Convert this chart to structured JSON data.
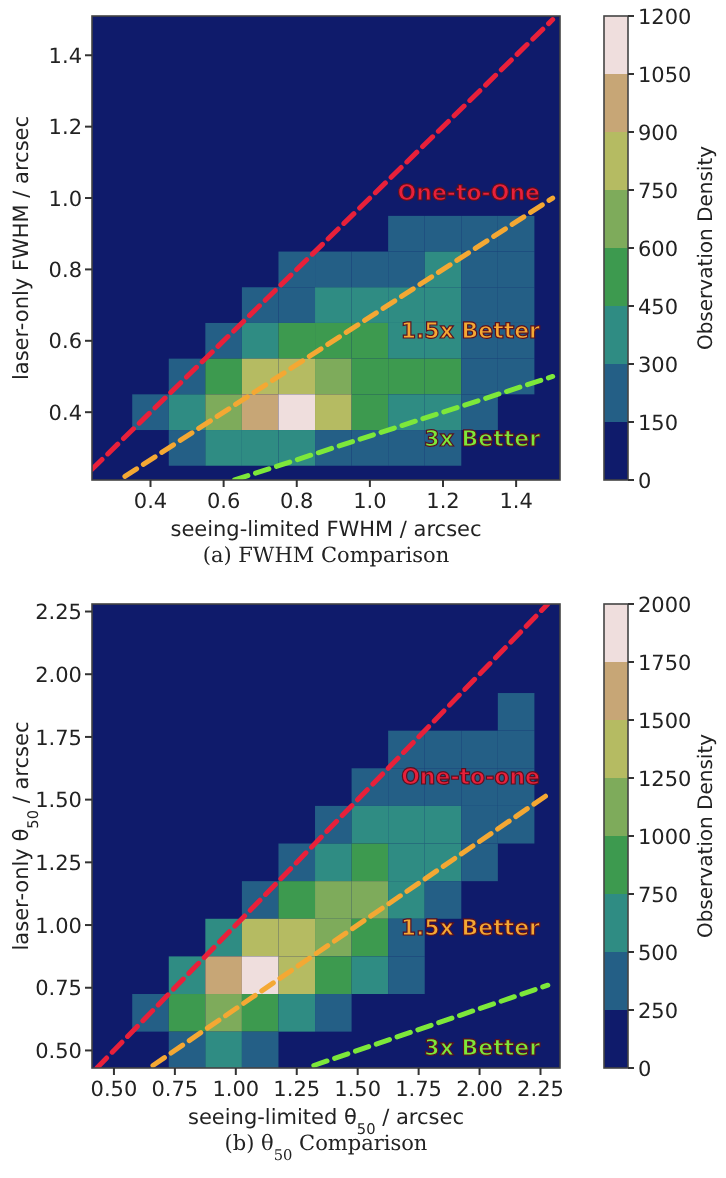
{
  "chart_data": [
    {
      "type": "scatter",
      "title": "(a) FWHM Comparison",
      "xlabel": "seeing-limited FWHM / arcsec",
      "ylabel": "laser-only FWHM / arcsec",
      "clabel": "Observation Density",
      "clim": [
        0,
        1200
      ],
      "cticks": [
        0,
        150,
        300,
        450,
        600,
        750,
        900,
        1050,
        1200
      ],
      "xlim": [
        0.24,
        1.52
      ],
      "ylim": [
        0.21,
        1.51
      ],
      "xticks": [
        {
          "value": 0.4,
          "label": "0.4"
        },
        {
          "value": 0.6,
          "label": "0.6"
        },
        {
          "value": 0.8,
          "label": "0.8"
        },
        {
          "value": 1.0,
          "label": "1.0"
        },
        {
          "value": 1.2,
          "label": "1.2"
        },
        {
          "value": 1.4,
          "label": "1.4"
        }
      ],
      "yticks": [
        {
          "value": 0.4,
          "label": "0.4"
        },
        {
          "value": 0.6,
          "label": "0.6"
        },
        {
          "value": 0.8,
          "label": "0.8"
        },
        {
          "value": 1.0,
          "label": "1.0"
        },
        {
          "value": 1.2,
          "label": "1.2"
        },
        {
          "value": 1.4,
          "label": "1.4"
        }
      ],
      "series": [
        {
          "type": "scatter",
          "marker": "square",
          "x": [
            1.1,
            1.2,
            1.3,
            1.4,
            0.8,
            0.9,
            1.0,
            1.1,
            1.2,
            1.3,
            1.4,
            0.7,
            0.8,
            0.9,
            1.0,
            1.1,
            1.2,
            1.3,
            1.4,
            0.6,
            0.7,
            0.8,
            0.9,
            1.0,
            1.1,
            1.2,
            1.3,
            1.4,
            0.5,
            0.6,
            0.7,
            0.8,
            0.9,
            1.0,
            1.1,
            1.2,
            1.3,
            1.4,
            0.4,
            0.5,
            0.6,
            0.7,
            0.8,
            0.9,
            1.0,
            1.1,
            1.2,
            1.3,
            0.5,
            0.6,
            0.7,
            0.8,
            0.9,
            1.0,
            1.1,
            1.2
          ],
          "values": [
            0.9,
            0.9,
            0.9,
            0.9,
            0.8,
            0.8,
            0.8,
            0.8,
            0.8,
            0.8,
            0.8,
            0.7,
            0.7,
            0.7,
            0.7,
            0.7,
            0.7,
            0.7,
            0.7,
            0.6,
            0.6,
            0.6,
            0.6,
            0.6,
            0.6,
            0.6,
            0.6,
            0.6,
            0.5,
            0.5,
            0.5,
            0.5,
            0.5,
            0.5,
            0.5,
            0.5,
            0.5,
            0.5,
            0.4,
            0.4,
            0.4,
            0.4,
            0.4,
            0.4,
            0.4,
            0.4,
            0.4,
            0.4,
            0.3,
            0.3,
            0.3,
            0.3,
            0.3,
            0.3,
            0.3,
            0.3
          ],
          "colors": [
            "#245f86",
            "#245f86",
            "#245f86",
            "#245f86",
            "#245f86",
            "#245f86",
            "#245f86",
            "#245f86",
            "#2f8c83",
            "#245f86",
            "#245f86",
            "#245f86",
            "#245f86",
            "#2f8c83",
            "#2f8c83",
            "#2f8c83",
            "#2f8c83",
            "#245f86",
            "#245f86",
            "#245f86",
            "#2f8c83",
            "#3d9a4f",
            "#3d9a4f",
            "#3d9a4f",
            "#2f8c83",
            "#2f8c83",
            "#245f86",
            "#245f86",
            "#245f86",
            "#3d9a4f",
            "#b5bb62",
            "#b5bb62",
            "#7eab5b",
            "#3d9a4f",
            "#3d9a4f",
            "#3d9a4f",
            "#245f86",
            "#245f86",
            "#245f86",
            "#2f8c83",
            "#7eab5b",
            "#c7a676",
            "#efdedd",
            "#b5bb62",
            "#3d9a4f",
            "#2f8c83",
            "#2f8c83",
            "#245f86",
            "#245f86",
            "#2f8c83",
            "#2f8c83",
            "#2f8c83",
            "#245f86",
            "#245f86",
            "#245f86",
            "#245f86"
          ]
        },
        {
          "type": "line",
          "name": "One-to-One",
          "color": "#e8203a",
          "line_style": "dashed",
          "x": [
            0.24,
            1.5
          ],
          "values": [
            0.24,
            1.5
          ]
        },
        {
          "type": "line",
          "name": "1.5x Better",
          "color": "#f4a833",
          "line_style": "dashed",
          "x": [
            0.33,
            1.5
          ],
          "values": [
            0.22,
            1.0
          ]
        },
        {
          "type": "line",
          "name": "3x Better",
          "color": "#7de83a",
          "line_style": "dashed",
          "x": [
            0.63,
            1.5
          ],
          "values": [
            0.21,
            0.5
          ]
        }
      ]
    },
    {
      "type": "scatter",
      "title": "(b) θ$_{50}$ Comparison",
      "xlabel": "seeing-limited θ$_{50}$ / arcsec",
      "ylabel": "laser-only θ$_{50}$ / arcsec",
      "clabel": "Observation Density",
      "clim": [
        0,
        2000
      ],
      "cticks": [
        0,
        250,
        500,
        750,
        1000,
        1250,
        1500,
        1750,
        2000
      ],
      "xlim": [
        0.41,
        2.33
      ],
      "ylim": [
        0.43,
        2.28
      ],
      "xticks": [
        {
          "value": 0.5,
          "label": "0.50"
        },
        {
          "value": 0.75,
          "label": "0.75"
        },
        {
          "value": 1.0,
          "label": "1.00"
        },
        {
          "value": 1.25,
          "label": "1.25"
        },
        {
          "value": 1.5,
          "label": "1.50"
        },
        {
          "value": 1.75,
          "label": "1.75"
        },
        {
          "value": 2.0,
          "label": "2.00"
        },
        {
          "value": 2.25,
          "label": "2.25"
        }
      ],
      "yticks": [
        {
          "value": 0.5,
          "label": "0.50"
        },
        {
          "value": 0.75,
          "label": "0.75"
        },
        {
          "value": 1.0,
          "label": "1.00"
        },
        {
          "value": 1.25,
          "label": "1.25"
        },
        {
          "value": 1.5,
          "label": "1.50"
        },
        {
          "value": 1.75,
          "label": "1.75"
        },
        {
          "value": 2.0,
          "label": "2.00"
        },
        {
          "value": 2.25,
          "label": "2.25"
        }
      ],
      "series": [
        {
          "type": "scatter",
          "marker": "square",
          "x": [
            2.15,
            1.7,
            1.85,
            2.0,
            2.15,
            1.55,
            1.7,
            1.85,
            2.0,
            2.15,
            1.4,
            1.55,
            1.7,
            1.85,
            2.0,
            2.15,
            1.25,
            1.4,
            1.55,
            1.7,
            1.85,
            2.0,
            1.1,
            1.25,
            1.4,
            1.55,
            1.7,
            1.85,
            0.95,
            1.1,
            1.25,
            1.4,
            1.55,
            1.7,
            0.8,
            0.95,
            1.1,
            1.25,
            1.4,
            1.55,
            1.7,
            0.65,
            0.8,
            0.95,
            1.1,
            1.25,
            1.4,
            0.8,
            0.95,
            1.1
          ],
          "values": [
            1.85,
            1.7,
            1.7,
            1.7,
            1.7,
            1.55,
            1.55,
            1.55,
            1.55,
            1.55,
            1.4,
            1.4,
            1.4,
            1.4,
            1.4,
            1.4,
            1.25,
            1.25,
            1.25,
            1.25,
            1.25,
            1.25,
            1.1,
            1.1,
            1.1,
            1.1,
            1.1,
            1.1,
            0.95,
            0.95,
            0.95,
            0.95,
            0.95,
            0.95,
            0.8,
            0.8,
            0.8,
            0.8,
            0.8,
            0.8,
            0.8,
            0.65,
            0.65,
            0.65,
            0.65,
            0.65,
            0.65,
            0.5,
            0.5,
            0.5
          ],
          "colors": [
            "#245f86",
            "#245f86",
            "#245f86",
            "#245f86",
            "#245f86",
            "#245f86",
            "#245f86",
            "#245f86",
            "#245f86",
            "#245f86",
            "#245f86",
            "#2f8c83",
            "#2f8c83",
            "#2f8c83",
            "#245f86",
            "#245f86",
            "#245f86",
            "#2f8c83",
            "#3d9a4f",
            "#2f8c83",
            "#2f8c83",
            "#245f86",
            "#245f86",
            "#3d9a4f",
            "#7eab5b",
            "#7eab5b",
            "#2f8c83",
            "#245f86",
            "#2f8c83",
            "#b5bb62",
            "#b5bb62",
            "#7eab5b",
            "#3d9a4f",
            "#245f86",
            "#2f8c83",
            "#c7a676",
            "#efdedd",
            "#b5bb62",
            "#3d9a4f",
            "#2f8c83",
            "#245f86",
            "#245f86",
            "#3d9a4f",
            "#7eab5b",
            "#3d9a4f",
            "#2f8c83",
            "#245f86",
            "#245f86",
            "#2f8c83",
            "#245f86"
          ]
        },
        {
          "type": "line",
          "name": "One-to-one",
          "color": "#e8203a",
          "line_style": "dashed",
          "x": [
            0.43,
            2.28
          ],
          "values": [
            0.43,
            2.28
          ]
        },
        {
          "type": "line",
          "name": "1.5x Better",
          "color": "#f4a833",
          "line_style": "dashed",
          "x": [
            0.66,
            2.28
          ],
          "values": [
            0.44,
            1.52
          ]
        },
        {
          "type": "line",
          "name": "3x Better",
          "color": "#7de83a",
          "line_style": "dashed",
          "x": [
            1.32,
            2.28
          ],
          "values": [
            0.44,
            0.76
          ]
        }
      ]
    }
  ]
}
